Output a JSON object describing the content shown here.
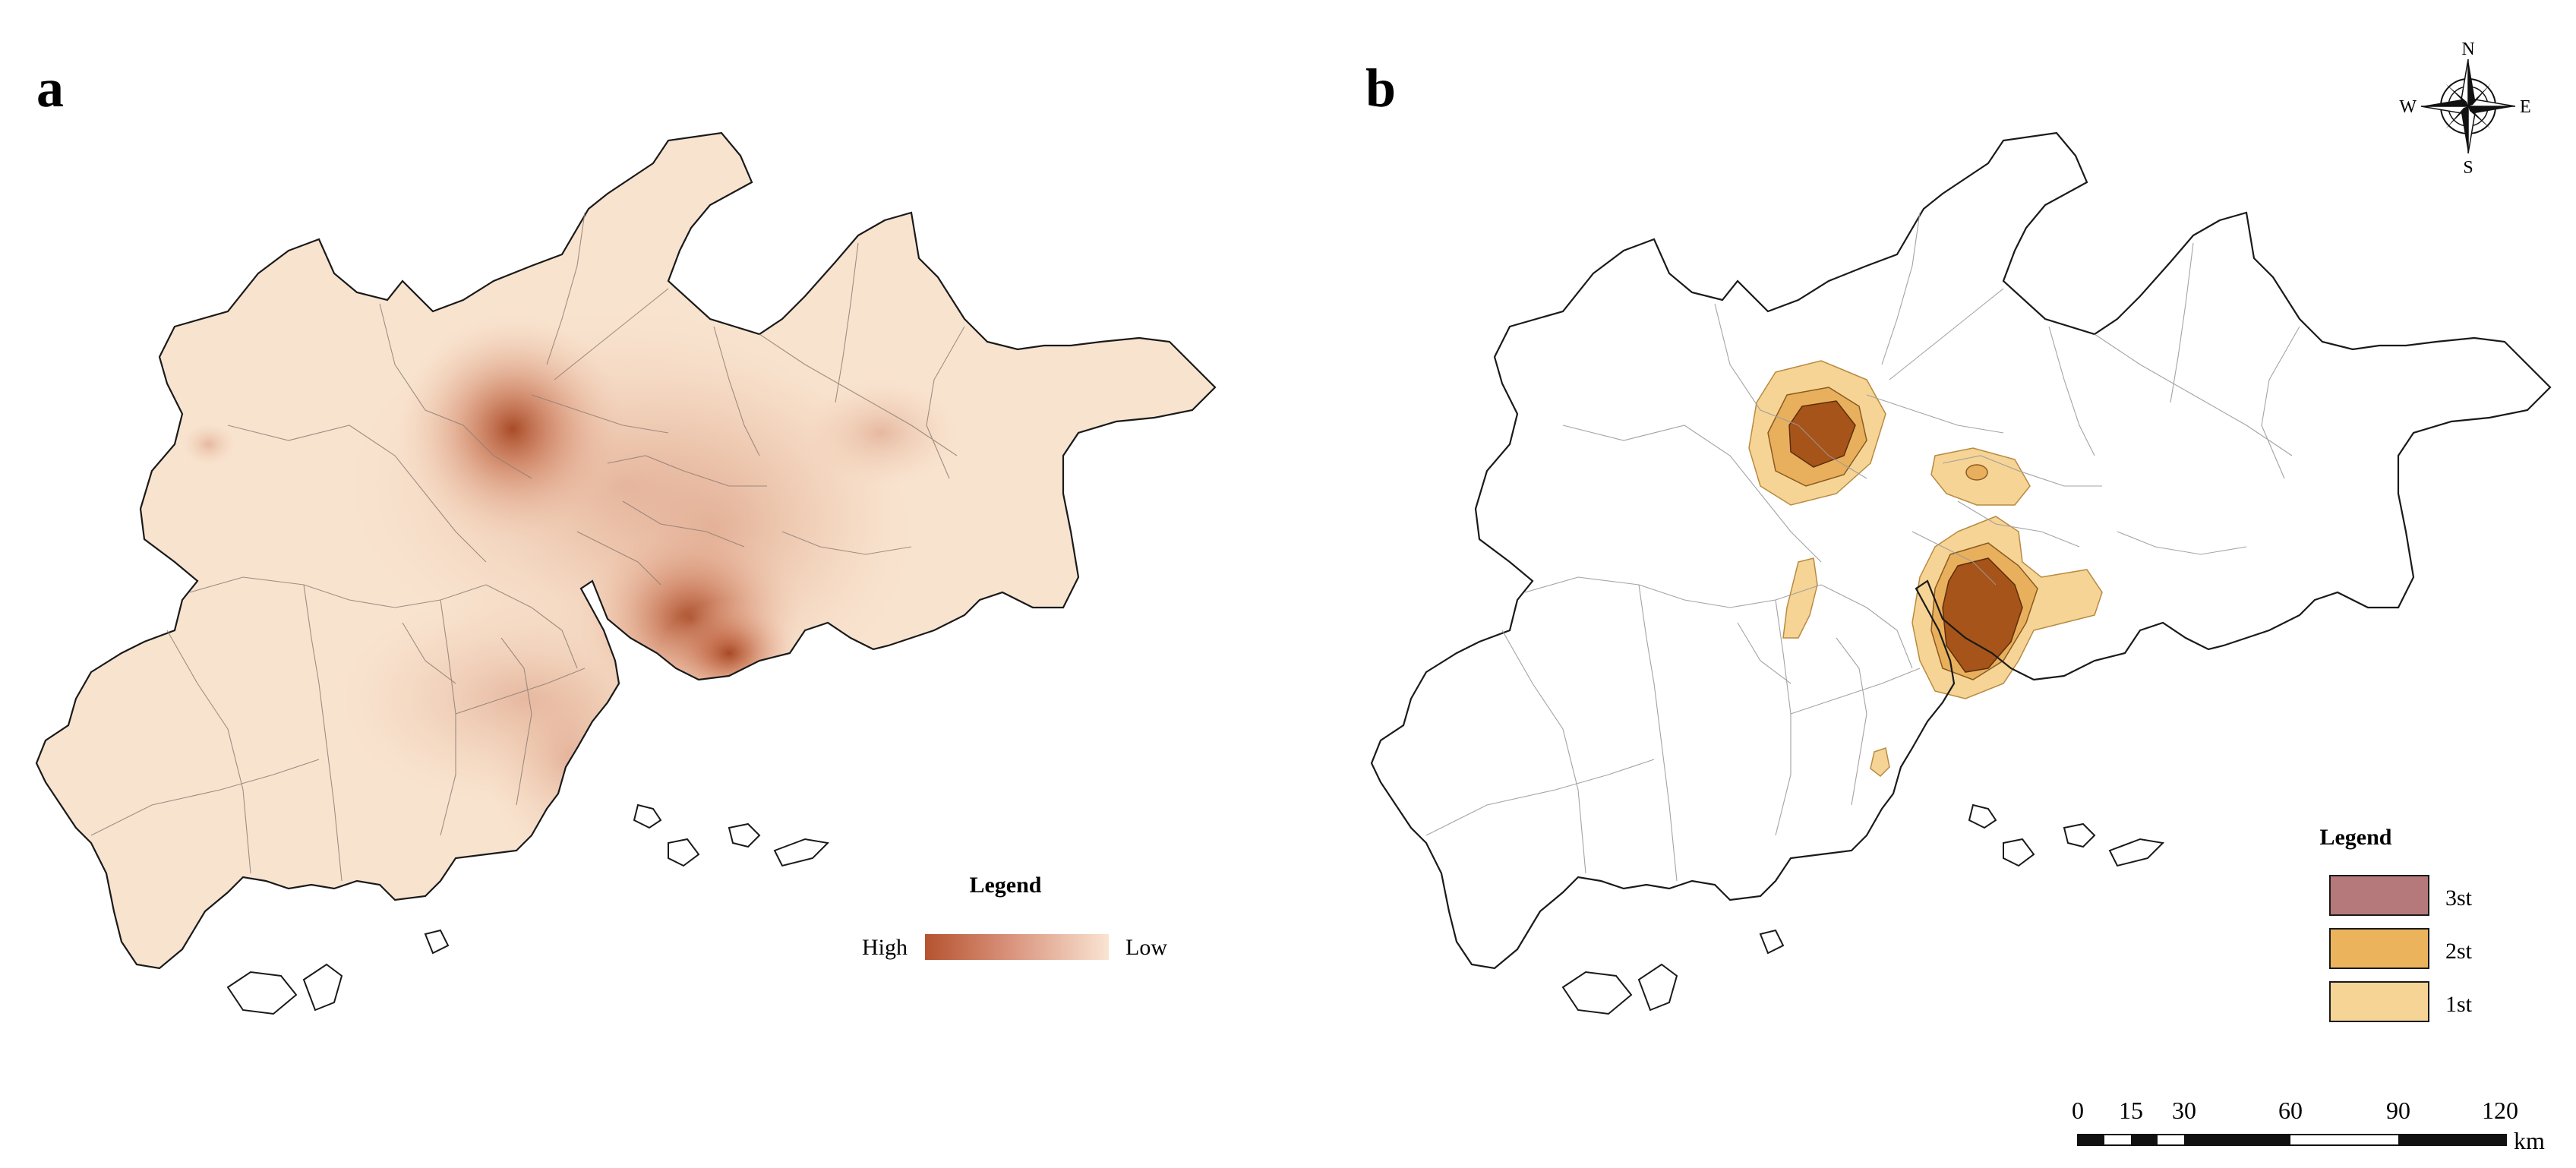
{
  "panels": [
    {
      "label": "a"
    },
    {
      "label": "b"
    }
  ],
  "legend_a": {
    "title": "Legend",
    "high_label": "High",
    "low_label": "Low",
    "high_color": "#b5532f",
    "low_color": "#f9e4d2"
  },
  "legend_b": {
    "title": "Legend",
    "items": [
      {
        "label": "3st",
        "color": "#b5797b"
      },
      {
        "label": "2st",
        "color": "#ebb35c"
      },
      {
        "label": "1st",
        "color": "#f6d495"
      }
    ]
  },
  "compass": {
    "n": "N",
    "s": "S",
    "e": "E",
    "w": "W"
  },
  "scale_bar": {
    "ticks": [
      "0",
      "15",
      "30",
      "60",
      "90",
      "120"
    ],
    "unit": "km"
  },
  "colors": {
    "base_fill": "#f8e3cf",
    "density_core": "#a5441f",
    "cluster_3": "#a65419",
    "cluster_2": "#e8b05d",
    "cluster_1": "#f6d495",
    "boundary": "#1a1a1a"
  }
}
